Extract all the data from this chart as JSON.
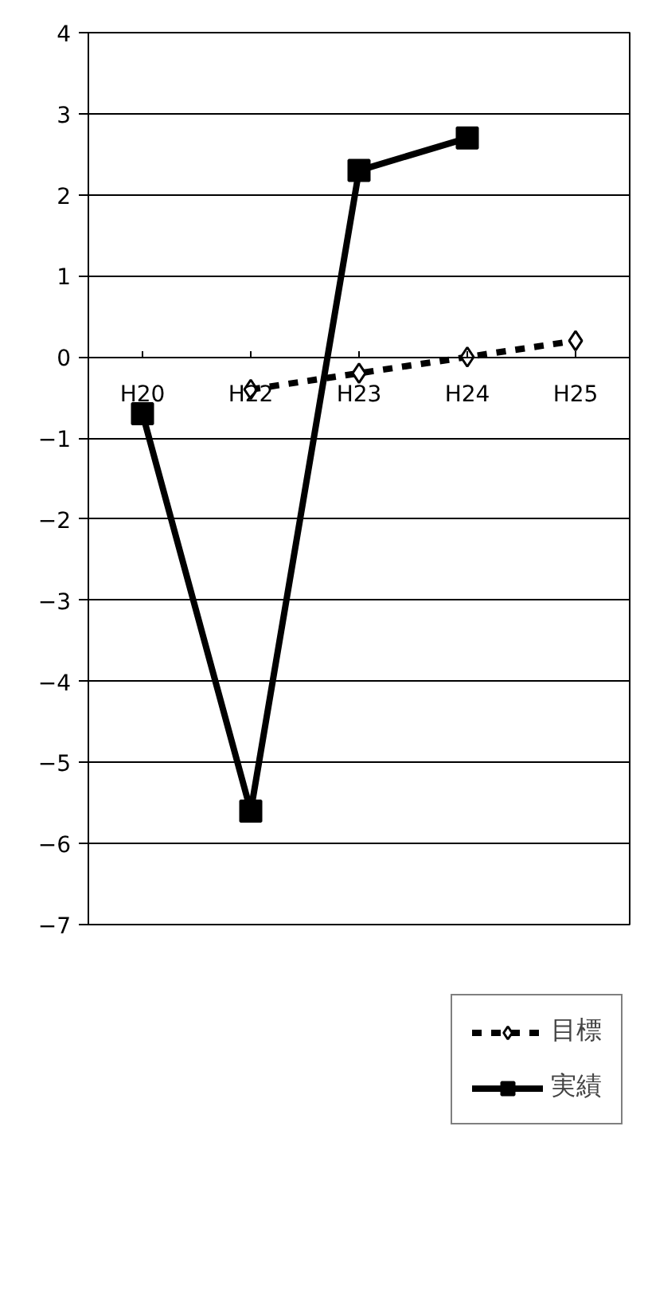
{
  "chart_data": {
    "type": "line",
    "categories": [
      "H20",
      "H22",
      "H23",
      "H24",
      "H25"
    ],
    "series": [
      {
        "name": "目標",
        "color": "#000000",
        "marker": "diamond",
        "line_style": "dashed",
        "values": [
          null,
          -0.4,
          -0.2,
          0.0,
          0.2
        ]
      },
      {
        "name": "実績",
        "color": "#000000",
        "marker": "square",
        "line_style": "solid",
        "values": [
          -0.7,
          -5.6,
          2.3,
          2.7,
          null
        ]
      }
    ],
    "ylim": [
      -7,
      4
    ],
    "yticks": [
      -7,
      -6,
      -5,
      -4,
      -3,
      -2,
      -1,
      0,
      1,
      2,
      3,
      4
    ],
    "grid": "y",
    "legend": "bottom right"
  }
}
